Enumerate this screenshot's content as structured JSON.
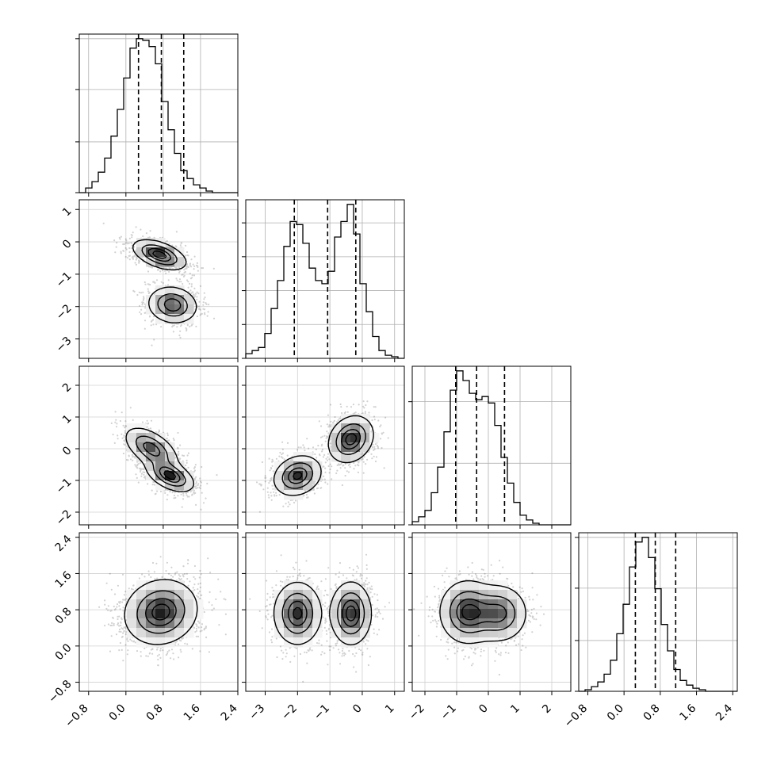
{
  "figure": {
    "type": "corner-plot",
    "background": "#ffffff",
    "contour_color": "#000000",
    "density_color": "#000000",
    "grid_color": "#b0b0b0"
  },
  "chart_data": {
    "type": "corner",
    "n_params": 4,
    "parameter_names": [
      "",
      "",
      "",
      ""
    ],
    "diagonal": [
      {
        "param": 0,
        "range": [
          -1.0,
          2.4
        ],
        "bin_edges_start": -1.0,
        "bin_width": 0.136,
        "counts": [
          0,
          0.03,
          0.07,
          0.13,
          0.22,
          0.36,
          0.53,
          0.73,
          0.92,
          0.98,
          0.97,
          0.93,
          0.82,
          0.58,
          0.4,
          0.25,
          0.14,
          0.09,
          0.05,
          0.03,
          0.01,
          0,
          0,
          0,
          0
        ],
        "quantiles": [
          0.27,
          0.76,
          1.24
        ],
        "yticks": [
          0,
          0.33,
          0.67,
          1.0
        ]
      },
      {
        "param": 1,
        "range": [
          -3.6,
          1.3
        ],
        "bin_edges_start": -3.6,
        "bin_width": 0.196,
        "counts": [
          0.03,
          0.05,
          0.07,
          0.16,
          0.32,
          0.5,
          0.72,
          0.88,
          0.86,
          0.74,
          0.58,
          0.5,
          0.48,
          0.56,
          0.78,
          0.88,
          0.99,
          0.8,
          0.48,
          0.3,
          0.14,
          0.05,
          0.02,
          0.01,
          0
        ],
        "quantiles": [
          -2.1,
          -1.07,
          -0.2
        ],
        "yticks": [
          0,
          0.22,
          0.44,
          0.66,
          0.88
        ]
      },
      {
        "param": 2,
        "range": [
          -2.4,
          2.6
        ],
        "bin_edges_start": -2.4,
        "bin_width": 0.2,
        "counts": [
          0.02,
          0.05,
          0.09,
          0.2,
          0.36,
          0.58,
          0.84,
          0.96,
          0.9,
          0.82,
          0.78,
          0.8,
          0.76,
          0.62,
          0.42,
          0.26,
          0.14,
          0.06,
          0.03,
          0.01,
          0,
          0,
          0,
          0,
          0
        ],
        "quantiles": [
          -1.03,
          -0.37,
          0.51
        ],
        "yticks": [
          0,
          0.4,
          0.8
        ]
      },
      {
        "param": 3,
        "range": [
          -1.0,
          2.5
        ],
        "bin_edges_start": -1.0,
        "bin_width": 0.14,
        "counts": [
          0,
          0.01,
          0.03,
          0.06,
          0.11,
          0.2,
          0.37,
          0.56,
          0.8,
          0.96,
          0.99,
          0.86,
          0.66,
          0.43,
          0.26,
          0.14,
          0.07,
          0.04,
          0.02,
          0.01,
          0,
          0,
          0,
          0,
          0
        ],
        "quantiles": [
          0.25,
          0.69,
          1.14
        ],
        "yticks": [
          0,
          0.33,
          0.67,
          1.0
        ]
      }
    ],
    "panels_2d": [
      {
        "row": 1,
        "col": 0,
        "blobs": [
          {
            "cx": 0.72,
            "cy": -0.4,
            "sx": 0.27,
            "sy": 0.22,
            "rho": -0.5,
            "w": 1.0
          },
          {
            "cx": 1.0,
            "cy": -1.95,
            "sx": 0.25,
            "sy": 0.27,
            "rho": -0.1,
            "w": 0.85
          }
        ]
      },
      {
        "row": 2,
        "col": 0,
        "blobs": [
          {
            "cx": 0.55,
            "cy": 0.0,
            "sx": 0.27,
            "sy": 0.32,
            "rho": -0.55,
            "w": 0.85
          },
          {
            "cx": 0.95,
            "cy": -0.85,
            "sx": 0.24,
            "sy": 0.24,
            "rho": -0.5,
            "w": 1.0
          }
        ]
      },
      {
        "row": 2,
        "col": 1,
        "blobs": [
          {
            "cx": -2.0,
            "cy": -0.85,
            "sx": 0.35,
            "sy": 0.3,
            "rho": 0.2,
            "w": 0.95
          },
          {
            "cx": -0.35,
            "cy": 0.3,
            "sx": 0.33,
            "sy": 0.35,
            "rho": 0.2,
            "w": 1.0
          }
        ]
      },
      {
        "row": 3,
        "col": 0,
        "blobs": [
          {
            "cx": 0.75,
            "cy": 0.75,
            "sx": 0.37,
            "sy": 0.34,
            "rho": 0.1,
            "w": 1.0
          }
        ]
      },
      {
        "row": 3,
        "col": 1,
        "blobs": [
          {
            "cx": -2.0,
            "cy": 0.72,
            "sx": 0.35,
            "sy": 0.33,
            "rho": 0.0,
            "w": 0.95
          },
          {
            "cx": -0.35,
            "cy": 0.72,
            "sx": 0.3,
            "sy": 0.33,
            "rho": 0.0,
            "w": 1.0
          }
        ]
      },
      {
        "row": 3,
        "col": 2,
        "blobs": [
          {
            "cx": -0.65,
            "cy": 0.75,
            "sx": 0.42,
            "sy": 0.33,
            "rho": 0.0,
            "w": 1.0
          },
          {
            "cx": 0.35,
            "cy": 0.72,
            "sx": 0.42,
            "sy": 0.3,
            "rho": 0.0,
            "w": 0.8
          }
        ]
      }
    ],
    "ticks": {
      "param0": {
        "values": [
          -0.8,
          0.0,
          0.8,
          1.6,
          2.4
        ],
        "labels": [
          "−0.8",
          "0.0",
          "0.8",
          "1.6",
          "2.4"
        ]
      },
      "param1": {
        "values": [
          -3,
          -2,
          -1,
          0,
          1
        ],
        "labels": [
          "−3",
          "−2",
          "−1",
          "0",
          "1"
        ]
      },
      "param2": {
        "values": [
          -2,
          -1,
          0,
          1,
          2
        ],
        "labels": [
          "−2",
          "−1",
          "0",
          "1",
          "2"
        ]
      },
      "param3": {
        "values": [
          -0.8,
          0.0,
          0.8,
          1.6,
          2.4
        ],
        "labels": [
          "−0.8",
          "0.0",
          "0.8",
          "1.6",
          "2.4"
        ]
      }
    },
    "grid": true
  }
}
